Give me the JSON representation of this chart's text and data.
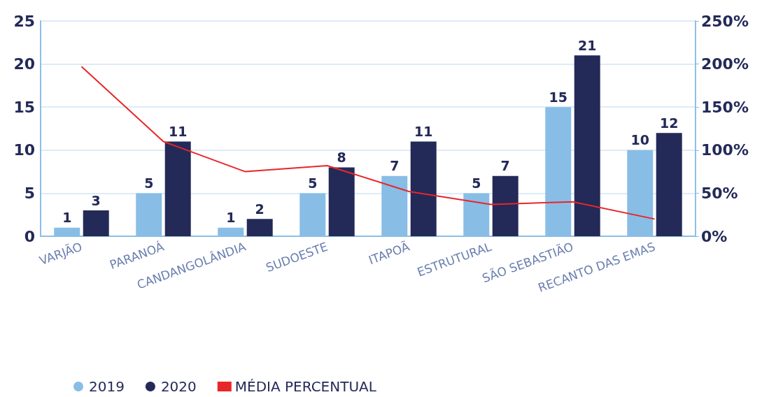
{
  "chart_data": {
    "type": "bar",
    "categories": [
      "VARJÃO",
      "PARANOÁ",
      "CANDANGOLÂNDIA",
      "SUDOESTE",
      "ITAPOÃ",
      "ESTRUTURAL",
      "SÃO SEBASTIÃO",
      "RECANTO DAS EMAS"
    ],
    "series": [
      {
        "name": "2019",
        "color": "#88bde6",
        "values": [
          1,
          5,
          1,
          5,
          7,
          5,
          15,
          10
        ],
        "value_labels": [
          "1",
          "5",
          "1",
          "5",
          "7",
          "5",
          "15",
          "10"
        ]
      },
      {
        "name": "2020",
        "color": "#232a58",
        "values": [
          3,
          11,
          2,
          8,
          11,
          7,
          21,
          12
        ],
        "value_labels": [
          "3",
          "11",
          "2",
          "8",
          "11",
          "7",
          "21",
          "12"
        ]
      },
      {
        "name": "MÉDIA PERCENTUAL",
        "type": "line",
        "axis": "y2",
        "color": "#e8262a",
        "values": [
          197,
          110,
          75,
          82,
          52,
          37,
          40,
          20
        ]
      }
    ],
    "ylim": [
      0,
      25
    ],
    "yticks": [
      0,
      5,
      10,
      15,
      20,
      25
    ],
    "y2lim": [
      0,
      250
    ],
    "y2ticks": [
      {
        "value": 0,
        "label": "0%"
      },
      {
        "value": 50,
        "label": "50%"
      },
      {
        "value": 100,
        "label": "100%"
      },
      {
        "value": 150,
        "label": "150%"
      },
      {
        "value": 200,
        "label": "200%"
      },
      {
        "value": 250,
        "label": "250%"
      }
    ],
    "grid": "y",
    "legend": "bottom",
    "marker": "none"
  }
}
